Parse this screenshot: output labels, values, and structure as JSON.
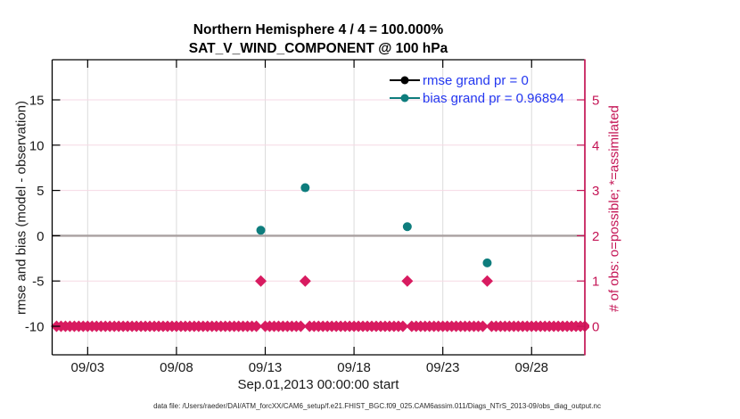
{
  "title": {
    "line1": "Northern Hemisphere 4 / 4 = 100.000%",
    "line2": "SAT_V_WIND_COMPONENT @ 100 hPa"
  },
  "axes": {
    "x": {
      "label": "Sep.01,2013 00:00:00 start",
      "ticks": [
        {
          "day": 2,
          "label": "09/03"
        },
        {
          "day": 7,
          "label": "09/08"
        },
        {
          "day": 12,
          "label": "09/13"
        },
        {
          "day": 17,
          "label": "09/18"
        },
        {
          "day": 22,
          "label": "09/23"
        },
        {
          "day": 27,
          "label": "09/28"
        }
      ],
      "range_days": [
        0,
        30
      ]
    },
    "y_left": {
      "label": "rmse and bias (model - observation)",
      "ticks": [
        -10,
        -5,
        0,
        5,
        10,
        15
      ],
      "range": [
        -13.15,
        19.43
      ]
    },
    "y_right": {
      "label": "# of obs: o=possible; *=assimilated",
      "ticks": [
        0,
        1,
        2,
        3,
        4,
        5
      ],
      "range": [
        -0.63,
        5.89
      ]
    }
  },
  "legend": [
    {
      "label": "rmse grand pr = 0",
      "color": "#000000",
      "marker": "circle"
    },
    {
      "label": "bias grand pr = 0.96894",
      "color": "#0e7d7d",
      "marker": "circle"
    }
  ],
  "caption": "data file: /Users/raeder/DAI/ATM_forcXX/CAM6_setup/f.e21.FHIST_BGC.f09_025.CAM6assim.011/Diags_NTrS_2013-09/obs_diag_output.nc",
  "colors": {
    "teal": "#0e7d7d",
    "crimson_marker": "#d81b60",
    "crimson_axis": "#c41455",
    "legend_text": "#2337f0",
    "zero_line": "#a9a0a0",
    "grid_horizontal": "#f6d9e4",
    "grid_vertical": "#dcdcdc",
    "axis_black": "#000000",
    "tick_text": "#1a1a1a"
  },
  "chart_data": {
    "type": "scatter",
    "title": "Northern Hemisphere 4 / 4 = 100.000% | SAT_V_WIND_COMPONENT @ 100 hPa",
    "xlabel": "Sep.01,2013 00:00:00 start",
    "ylabel_left": "rmse and bias (model - observation)",
    "ylabel_right": "# of obs: o=possible; *=assimilated",
    "x_unit": "days since 2013-09-01 00:00",
    "xlim_days": [
      0,
      30
    ],
    "ylim_left": [
      -13.15,
      19.43
    ],
    "ylim_right": [
      -0.63,
      5.89
    ],
    "grid": true,
    "legend_position": "upper right inside",
    "zero_line": {
      "value": 0,
      "axis": "left"
    },
    "series": [
      {
        "name": "rmse",
        "axis": "left",
        "marker": "circle",
        "points": []
      },
      {
        "name": "bias",
        "axis": "left",
        "marker": "circle",
        "points": [
          {
            "day": 11.75,
            "value": 0.6
          },
          {
            "day": 14.25,
            "value": 5.3
          },
          {
            "day": 20.0,
            "value": 1.0
          },
          {
            "day": 24.5,
            "value": -3.0
          }
        ]
      },
      {
        "name": "obs_possible",
        "axis": "right",
        "marker": "diamond",
        "bins": {
          "start_day": 0.25,
          "step_day": 0.25,
          "end_day": 30.0
        },
        "default_value": 0,
        "exceptions": [
          {
            "day": 11.75,
            "value": 1
          },
          {
            "day": 14.25,
            "value": 1
          },
          {
            "day": 20.0,
            "value": 1
          },
          {
            "day": 24.5,
            "value": 1
          }
        ]
      }
    ]
  }
}
